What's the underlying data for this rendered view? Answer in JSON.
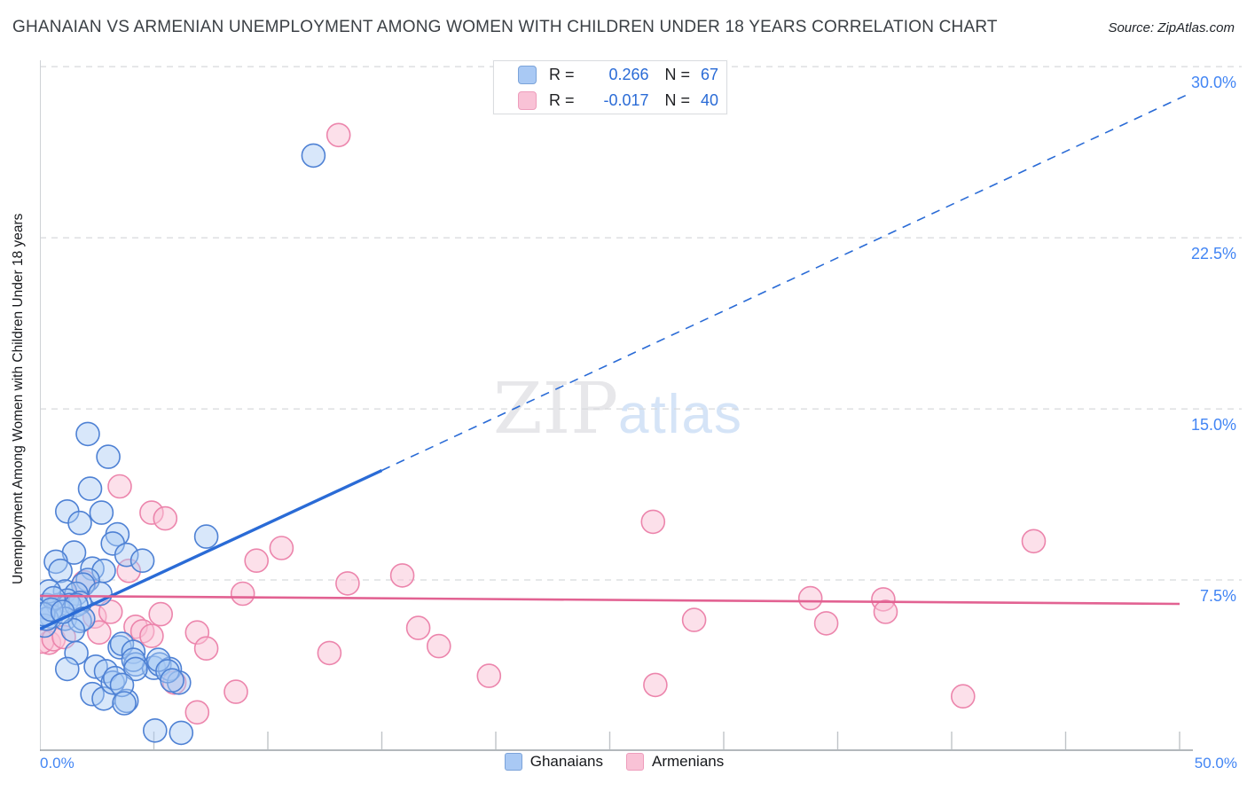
{
  "header": {
    "title": "GHANAIAN VS ARMENIAN UNEMPLOYMENT AMONG WOMEN WITH CHILDREN UNDER 18 YEARS CORRELATION CHART",
    "source": "Source: ZipAtlas.com"
  },
  "watermark": {
    "zip": "ZIP",
    "atlas": "atlas"
  },
  "legend_box": {
    "rows": [
      {
        "series": "Ghanaians",
        "r_label": "R =",
        "r_value": "0.266",
        "n_label": "N =",
        "n_value": "67"
      },
      {
        "series": "Armenians",
        "r_label": "R =",
        "r_value": "-0.017",
        "n_label": "N =",
        "n_value": "40"
      }
    ]
  },
  "axis": {
    "y_label": "Unemployment Among Women with Children Under 18 years",
    "y_tick_labels": [
      "30.0%",
      "22.5%",
      "15.0%",
      "7.5%"
    ],
    "x_min_label": "0.0%",
    "x_max_label": "50.0%"
  },
  "bottom_legend": [
    {
      "label": "Ghanaians"
    },
    {
      "label": "Armenians"
    }
  ],
  "colors": {
    "blue_stroke": "#4e81d4",
    "blue_fill": "#a9c9f4",
    "pink_stroke": "#ec85ac",
    "pink_fill": "#f9c2d6",
    "blue_trend": "#2a6bd6",
    "pink_trend": "#e26292",
    "grid": "#d7d9dc",
    "axis": "#9aa0a6",
    "tick": "#c0c4c8",
    "tick_label": "#4285f4"
  },
  "chart_data": {
    "type": "scatter",
    "title": "Ghanaian vs Armenian Unemployment Among Women with Children Under 18 years",
    "xlabel": "",
    "ylabel": "Unemployment Among Women with Children Under 18 years",
    "x_range_pct": [
      0,
      50
    ],
    "y_range_pct": [
      0,
      30.3
    ],
    "y_grid_pct": [
      7.5,
      15,
      22.5,
      30
    ],
    "x_ticks_pct": [
      5,
      10,
      15,
      20,
      25,
      30,
      35,
      40,
      45,
      50
    ],
    "grid": "dashed-horizontal",
    "legend_position": "top-center",
    "series": [
      {
        "name": "Ghanaians",
        "R": 0.266,
        "N": 67,
        "points": [
          [
            12.0,
            26.1
          ],
          [
            2.1,
            13.9
          ],
          [
            3.0,
            12.9
          ],
          [
            2.2,
            11.5
          ],
          [
            1.2,
            10.5
          ],
          [
            1.75,
            10.0
          ],
          [
            2.7,
            10.45
          ],
          [
            3.4,
            9.5
          ],
          [
            3.2,
            9.1
          ],
          [
            7.3,
            9.4
          ],
          [
            1.5,
            8.7
          ],
          [
            0.7,
            8.3
          ],
          [
            0.9,
            7.9
          ],
          [
            2.3,
            8.0
          ],
          [
            2.8,
            7.9
          ],
          [
            3.8,
            8.6
          ],
          [
            4.5,
            8.35
          ],
          [
            2.1,
            7.5
          ],
          [
            1.9,
            7.3
          ],
          [
            1.1,
            7.0
          ],
          [
            1.6,
            6.9
          ],
          [
            2.65,
            6.9
          ],
          [
            1.2,
            6.6
          ],
          [
            1.75,
            6.5
          ],
          [
            0.3,
            6.4
          ],
          [
            0.2,
            6.3
          ],
          [
            0.8,
            6.4
          ],
          [
            1.3,
            6.4
          ],
          [
            1.6,
            6.4
          ],
          [
            0.5,
            5.9
          ],
          [
            1.1,
            5.8
          ],
          [
            1.75,
            5.7
          ],
          [
            1.9,
            5.8
          ],
          [
            0.2,
            5.5
          ],
          [
            1.45,
            5.3
          ],
          [
            0.4,
            7.0
          ],
          [
            0.6,
            6.7
          ],
          [
            0.3,
            5.8
          ],
          [
            1.6,
            4.3
          ],
          [
            2.45,
            3.7
          ],
          [
            2.9,
            3.5
          ],
          [
            3.5,
            4.55
          ],
          [
            3.6,
            4.7
          ],
          [
            4.1,
            4.35
          ],
          [
            4.2,
            3.8
          ],
          [
            5.0,
            3.65
          ],
          [
            1.2,
            3.6
          ],
          [
            2.3,
            2.5
          ],
          [
            2.8,
            2.3
          ],
          [
            3.2,
            3.0
          ],
          [
            3.8,
            2.2
          ],
          [
            4.1,
            4.0
          ],
          [
            4.2,
            3.6
          ],
          [
            5.25,
            3.8
          ],
          [
            5.7,
            3.6
          ],
          [
            3.3,
            3.2
          ],
          [
            3.6,
            2.9
          ],
          [
            6.1,
            3.0
          ],
          [
            3.7,
            2.1
          ],
          [
            5.05,
            0.9
          ],
          [
            6.2,
            0.8
          ],
          [
            5.2,
            4.0
          ],
          [
            5.6,
            3.5
          ],
          [
            5.8,
            3.1
          ],
          [
            0.15,
            6.0
          ],
          [
            0.5,
            6.2
          ],
          [
            1.0,
            6.1
          ]
        ]
      },
      {
        "name": "Armenians",
        "R": -0.017,
        "N": 40,
        "points": [
          [
            13.1,
            27.0
          ],
          [
            3.5,
            11.6
          ],
          [
            4.9,
            10.45
          ],
          [
            5.5,
            10.2
          ],
          [
            10.6,
            8.9
          ],
          [
            9.5,
            8.35
          ],
          [
            3.9,
            7.9
          ],
          [
            1.95,
            7.4
          ],
          [
            26.9,
            10.05
          ],
          [
            13.5,
            7.35
          ],
          [
            15.9,
            7.7
          ],
          [
            16.6,
            5.4
          ],
          [
            17.5,
            4.6
          ],
          [
            12.7,
            4.3
          ],
          [
            19.7,
            3.3
          ],
          [
            28.7,
            5.75
          ],
          [
            27.0,
            2.9
          ],
          [
            33.8,
            6.7
          ],
          [
            34.5,
            5.6
          ],
          [
            37.0,
            6.65
          ],
          [
            37.1,
            6.1
          ],
          [
            43.6,
            9.2
          ],
          [
            40.5,
            2.4
          ],
          [
            0.4,
            4.75
          ],
          [
            0.1,
            4.8
          ],
          [
            0.6,
            4.9
          ],
          [
            1.05,
            5.0
          ],
          [
            2.4,
            5.9
          ],
          [
            2.6,
            5.2
          ],
          [
            3.1,
            6.1
          ],
          [
            4.2,
            5.45
          ],
          [
            4.5,
            5.25
          ],
          [
            4.9,
            5.05
          ],
          [
            5.3,
            6.0
          ],
          [
            6.9,
            5.2
          ],
          [
            7.3,
            4.5
          ],
          [
            5.9,
            3.0
          ],
          [
            8.6,
            2.6
          ],
          [
            6.9,
            1.7
          ],
          [
            8.9,
            6.9
          ]
        ]
      }
    ],
    "trend_lines": [
      {
        "series": "Ghanaians",
        "solid": [
          [
            0,
            5.35
          ],
          [
            15,
            12.3
          ]
        ],
        "dashed": [
          [
            15,
            12.3
          ],
          [
            50.4,
            28.8
          ]
        ]
      },
      {
        "series": "Armenians",
        "solid": [
          [
            0,
            6.8
          ],
          [
            50,
            6.45
          ]
        ]
      }
    ]
  }
}
